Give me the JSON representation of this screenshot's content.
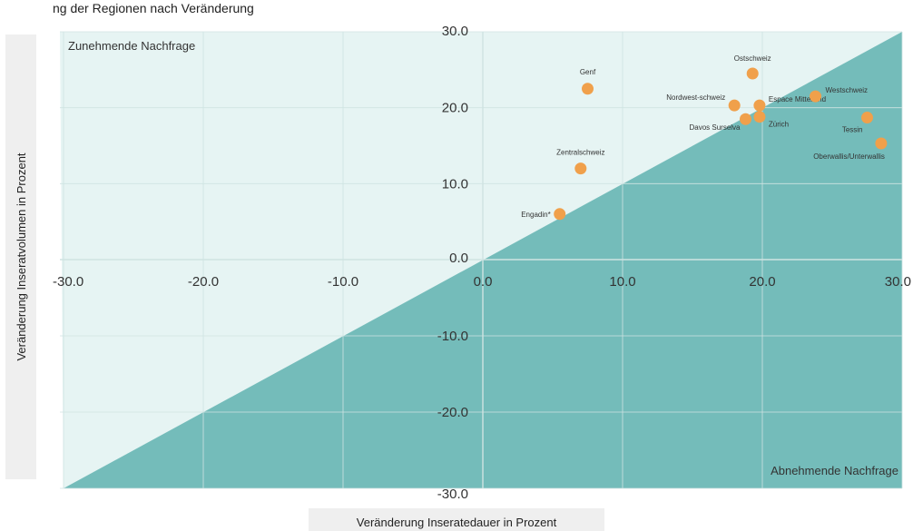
{
  "chart_data": {
    "type": "scatter",
    "title": "ng der Regionen nach Veränderung",
    "xlabel": "Veränderung Inseratedauer in Prozent",
    "ylabel": "Veränderung Inseratvolumen in Prozent",
    "xlim": [
      -30,
      30
    ],
    "ylim": [
      -30,
      30
    ],
    "x_ticks": [
      "-30.0",
      "-20.0",
      "-10.0",
      "0.0",
      "10.0",
      "20.0",
      "30.0"
    ],
    "y_ticks": [
      "30.0",
      "20.0",
      "10.0",
      "0.0",
      "-10.0",
      "-20.0",
      "-30.0"
    ],
    "grid": true,
    "regions": {
      "upper_left": "Zunehmende Nachfrage",
      "lower_right": "Abnehmende Nachfrage"
    },
    "colors": {
      "upper_region": "#e6f4f3",
      "lower_region": "#74bcba",
      "point": "#f0a04b",
      "grid": "#cfe3e2"
    },
    "points": [
      {
        "label": "Genf",
        "x": 7.5,
        "y": 22.5
      },
      {
        "label": "Zentralschweiz",
        "x": 7.0,
        "y": 12.0
      },
      {
        "label": "Engadin*",
        "x": 5.5,
        "y": 6.0
      },
      {
        "label": "Ostschweiz",
        "x": 19.3,
        "y": 24.5
      },
      {
        "label": "Nordwest-schweiz",
        "x": 18.0,
        "y": 20.3
      },
      {
        "label": "Espace Mittelland",
        "x": 19.8,
        "y": 20.3
      },
      {
        "label": "Zürich",
        "x": 19.8,
        "y": 18.8
      },
      {
        "label": "Davos Surselva",
        "x": 18.8,
        "y": 18.5
      },
      {
        "label": "Westschweiz",
        "x": 23.8,
        "y": 21.5
      },
      {
        "label": "Tessin",
        "x": 27.5,
        "y": 18.7
      },
      {
        "label": "Oberwallis/Unterwallis",
        "x": 28.5,
        "y": 15.3
      }
    ]
  }
}
